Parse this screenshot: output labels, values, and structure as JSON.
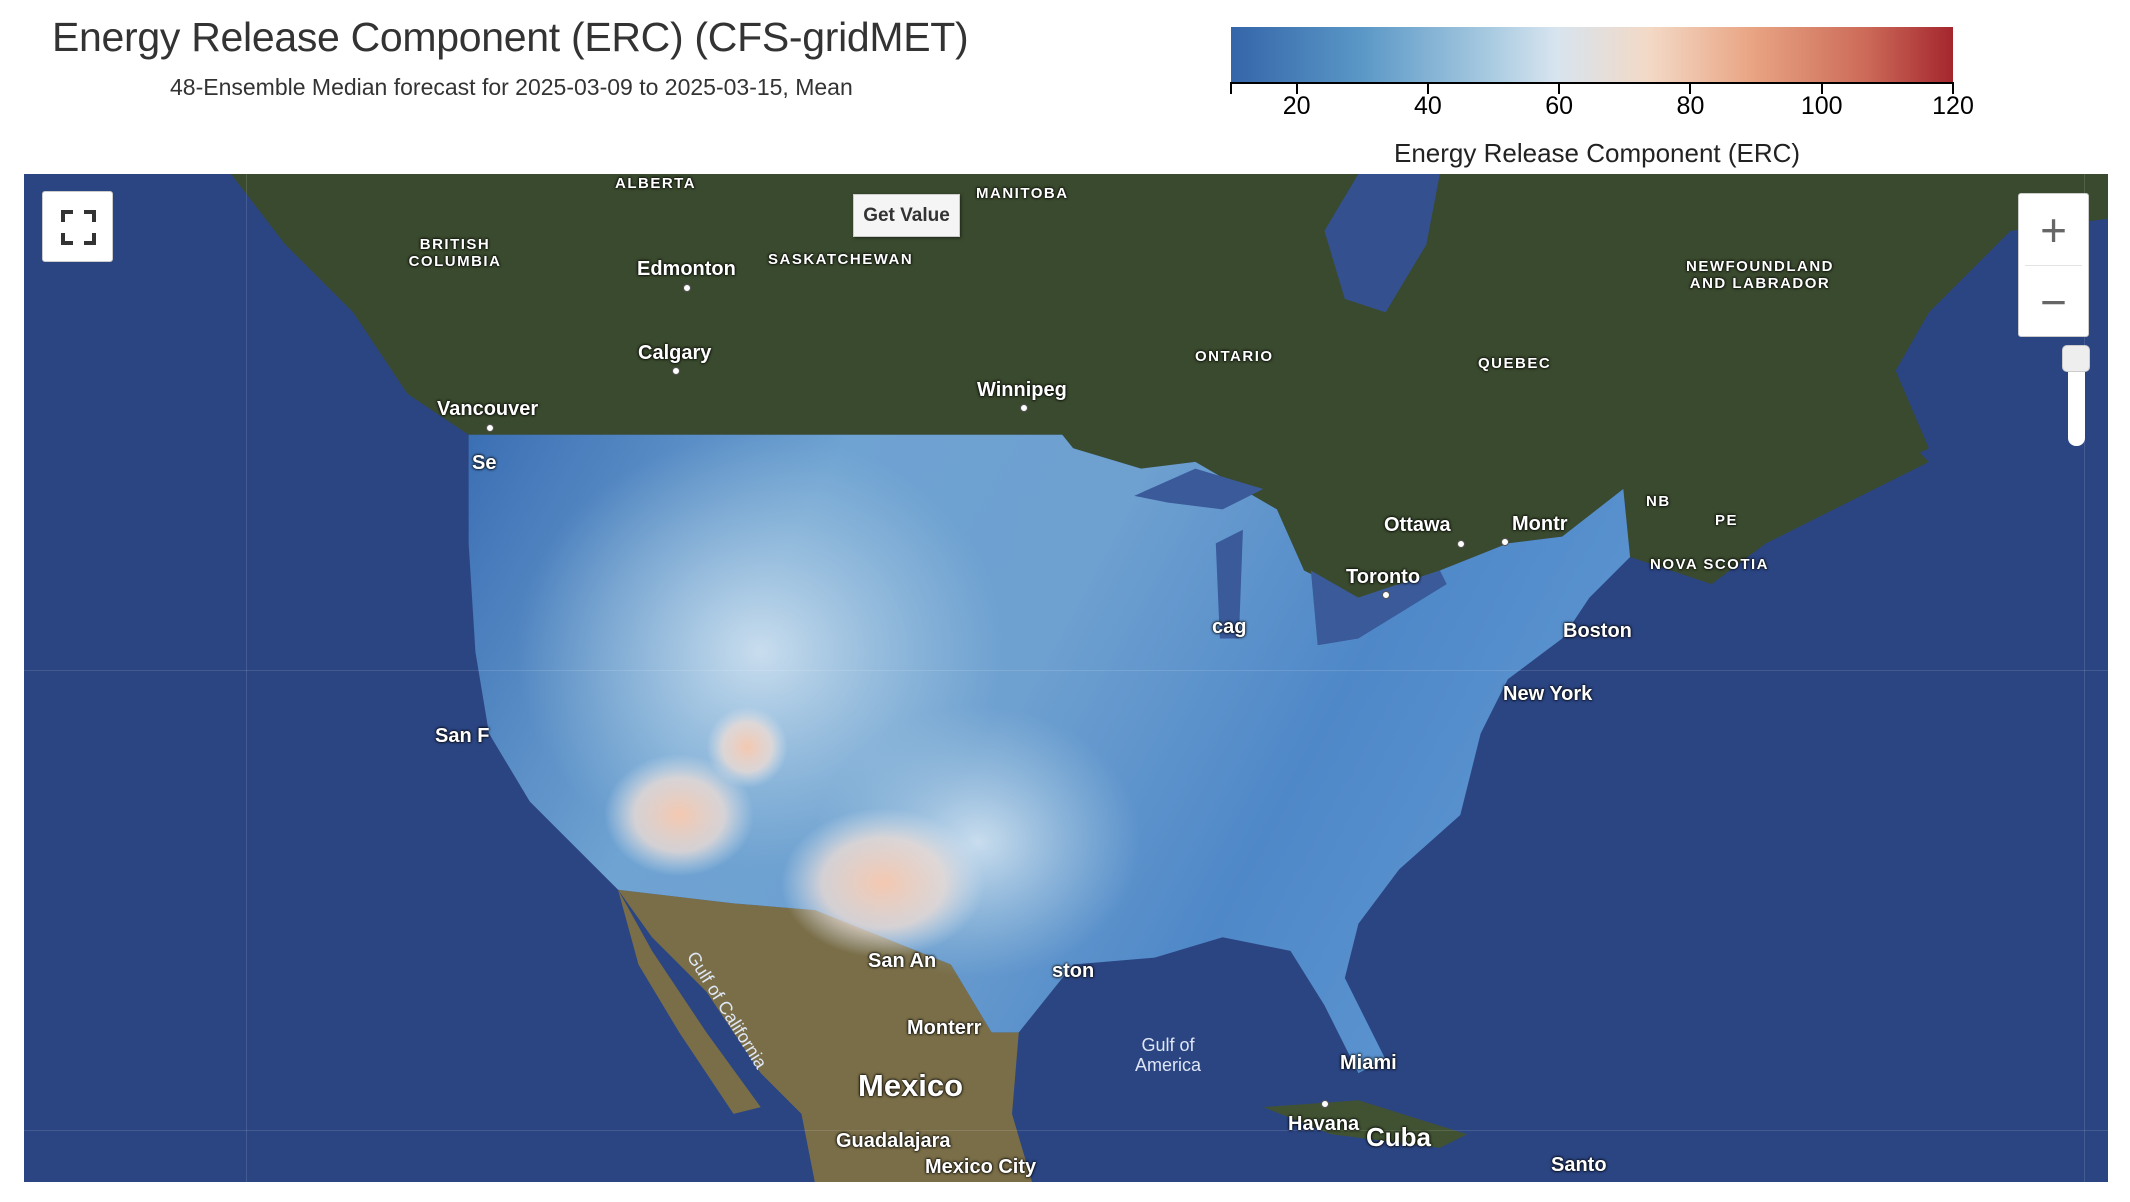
{
  "header": {
    "title": "Energy Release Component (ERC) (CFS-gridMET)",
    "subtitle": "48-Ensemble Median forecast for 2025-03-09 to 2025-03-15, Mean"
  },
  "legend": {
    "title": "Energy Release Component (ERC)",
    "range": [
      10,
      120
    ],
    "ticks": [
      "20",
      "40",
      "60",
      "80",
      "100",
      "120"
    ],
    "colors": [
      "#3465a9",
      "#5a97c6",
      "#a9cbe1",
      "#d7e4ef",
      "#f3d9c6",
      "#e9a584",
      "#cc6a58",
      "#a4262e"
    ]
  },
  "map": {
    "get_value_label": "Get Value",
    "zoom_in": "+",
    "zoom_out": "−",
    "icons": [
      "fullscreen-icon",
      "zoom-in-icon",
      "zoom-out-icon"
    ],
    "labels": [
      "ALBERTA",
      "BRITISH COLUMBIA",
      "Edmonton",
      "SASKATCHEWAN",
      "MANITOBA",
      "Calgary",
      "Winnipeg",
      "Vancouver",
      "ONTARIO",
      "QUEBEC",
      "NEWFOUNDLAND AND LABRADOR",
      "Ottawa",
      "Montr",
      "Toronto",
      "Boston",
      "New York",
      "NB",
      "PE",
      "NOVA SCOTIA",
      "San F",
      "Gulf of California",
      "Monterr",
      "Mexico",
      "Guadalajara",
      "Mexico City",
      "Gulf of America",
      "Miami",
      "Havana",
      "Cuba",
      "Santo",
      "ston",
      "San An",
      "Se",
      "cag"
    ]
  }
}
